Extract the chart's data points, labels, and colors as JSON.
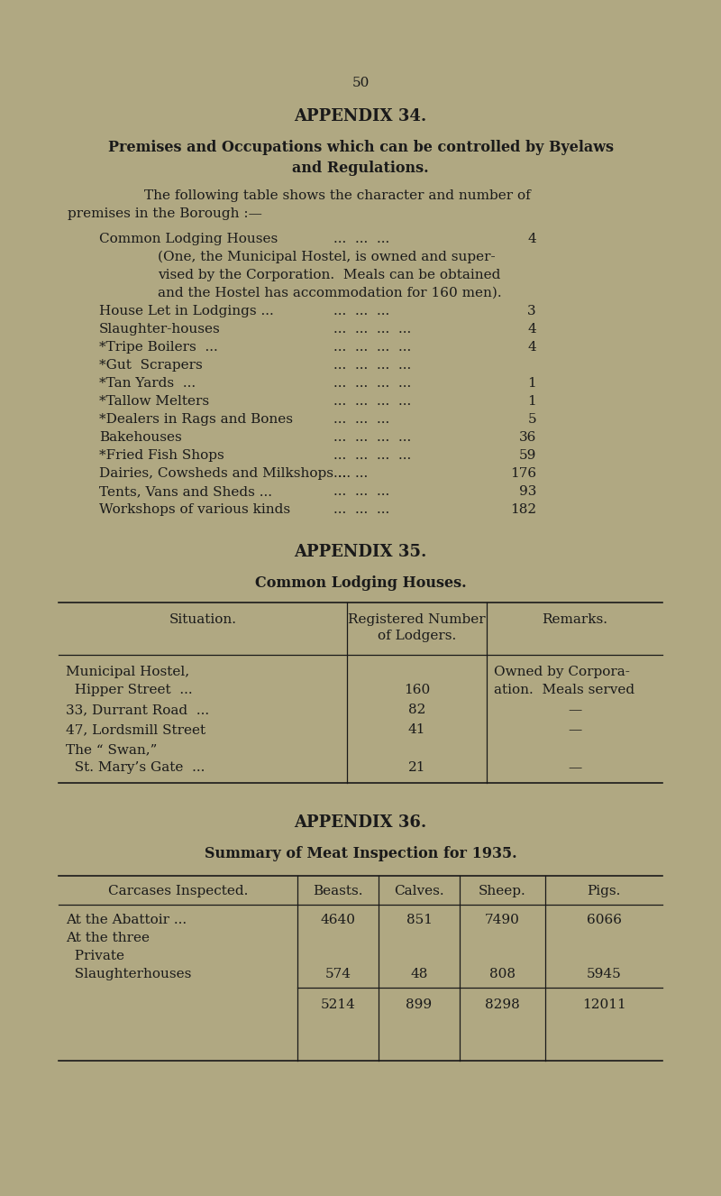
{
  "bg_color": "#b0a882",
  "text_color": "#1a1a1a",
  "page_number": "50",
  "appendix34_title": "APPENDIX 34.",
  "appendix34_subtitle1": "Premises and Occupations which can be controlled by Byelaws",
  "appendix34_subtitle2": "and Regulations.",
  "appendix34_intro1": "The following table shows the character and number of",
  "appendix34_intro2": "premises in the Borough :—",
  "premises_left": [
    "Common Lodging Houses",
    "(One, the Municipal Hostel, is owned and super-",
    "vised by the Corporation.  Meals can be obtained",
    "and the Hostel has accommodation for 160 men).",
    "House Let in Lodgings ...",
    "Slaughter-houses",
    "*Tripe Boilers  ...",
    "*Gut  Scrapers",
    "*Tan Yards  ...",
    "*Tallow Melters",
    "*Dealers in Rags and Bones",
    "Bakehouses",
    "*Fried Fish Shops",
    "Dairies, Cowsheds and Milkshops ...",
    "Tents, Vans and Sheds ...",
    "Workshops of various kinds"
  ],
  "premises_dots": [
    "...  ...  ...",
    "",
    "",
    "",
    "...  ...  ...",
    "...  ...  ...  ...",
    "...  ...  ...  ...",
    "...  ...  ...  ...",
    "...  ...  ...  ...",
    "...  ...  ...  ...",
    "...  ...  ...",
    "...  ...  ...  ...",
    "...  ...  ...  ...",
    "...  ...",
    "...  ...  ...",
    "...  ...  ..."
  ],
  "premises_numbers": [
    "4",
    "",
    "",
    "",
    "3",
    "4",
    "4",
    "",
    "1",
    "1",
    "5",
    "36",
    "59",
    "176",
    "93",
    "182"
  ],
  "premises_indent": [
    0,
    1,
    1,
    1,
    0,
    0,
    0,
    0,
    0,
    0,
    0,
    0,
    0,
    0,
    0,
    0
  ],
  "appendix35_title": "APPENDIX 35.",
  "appendix35_subtitle": "Common Lodging Houses.",
  "appendix36_title": "APPENDIX 36.",
  "appendix36_subtitle": "Summary of Meat Inspection for 1935."
}
